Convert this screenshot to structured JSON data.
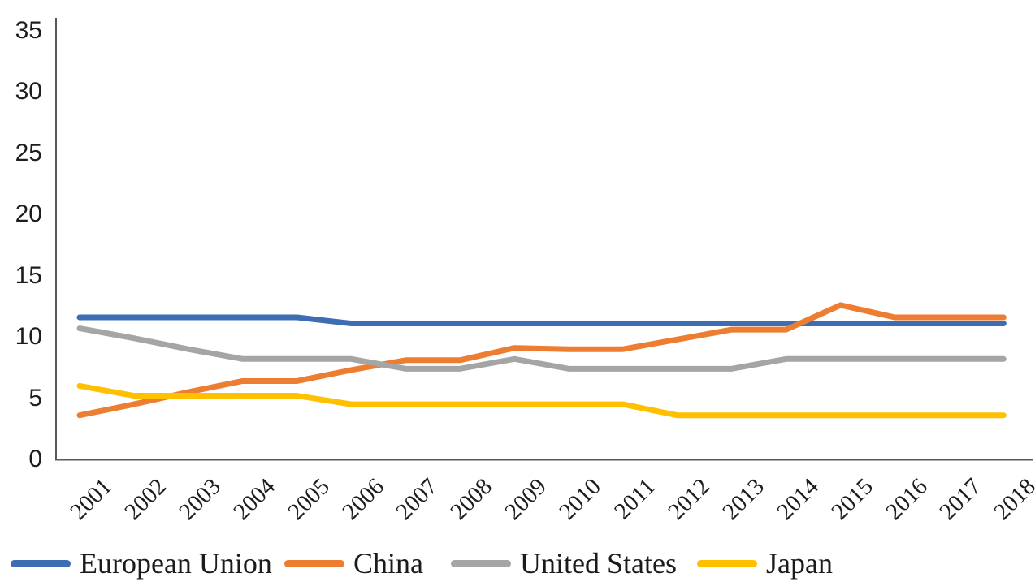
{
  "chart_data": {
    "type": "line",
    "title": "",
    "xlabel": "",
    "ylabel": "",
    "categories": [
      "2001",
      "2002",
      "2003",
      "2004",
      "2005",
      "2006",
      "2007",
      "2008",
      "2009",
      "2010",
      "2011",
      "2012",
      "2013",
      "2014",
      "2015",
      "2016",
      "2017",
      "2018"
    ],
    "series": [
      {
        "name": "European Union",
        "color": "#3D6DB3",
        "values": [
          11.6,
          11.6,
          11.6,
          11.6,
          11.6,
          11.1,
          11.1,
          11.1,
          11.1,
          11.1,
          11.1,
          11.1,
          11.1,
          11.1,
          11.1,
          11.1,
          11.1,
          11.1
        ]
      },
      {
        "name": "China",
        "color": "#ED7D31",
        "values": [
          3.6,
          4.5,
          5.5,
          6.4,
          6.4,
          7.3,
          8.1,
          8.1,
          9.1,
          9.0,
          9.0,
          9.8,
          10.6,
          10.6,
          12.6,
          11.6,
          11.6,
          11.6
        ]
      },
      {
        "name": "United States",
        "color": "#A5A5A5",
        "values": [
          10.7,
          9.9,
          9.0,
          8.2,
          8.2,
          8.2,
          7.4,
          7.4,
          8.2,
          7.4,
          7.4,
          7.4,
          7.4,
          8.2,
          8.2,
          8.2,
          8.2,
          8.2
        ]
      },
      {
        "name": "Japan",
        "color": "#FFC000",
        "values": [
          6.0,
          5.2,
          5.2,
          5.2,
          5.2,
          4.5,
          4.5,
          4.5,
          4.5,
          4.5,
          4.5,
          3.6,
          3.6,
          3.6,
          3.6,
          3.6,
          3.6,
          3.6
        ]
      }
    ],
    "ylim": [
      0,
      35
    ],
    "y_ticks": [
      0,
      5,
      10,
      15,
      20,
      25,
      30,
      35
    ],
    "grid": false,
    "legend_position": "bottom-left",
    "axis_color": "#595959",
    "label_color": "#1d1d1d",
    "line_width": 7
  }
}
